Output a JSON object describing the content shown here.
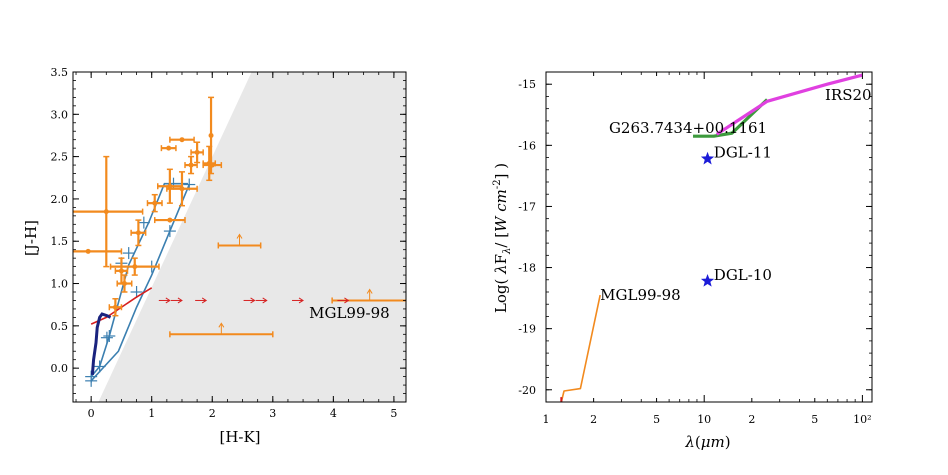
{
  "chart_data": [
    {
      "type": "scatter",
      "title": "",
      "xlabel": "[H-K]",
      "ylabel": "[J-H]",
      "xlim": [
        -0.3,
        5.2
      ],
      "ylim": [
        -0.4,
        3.5
      ],
      "xticks": [
        "0",
        "1",
        "2",
        "3",
        "4",
        "5"
      ],
      "xtick_values": [
        0,
        1,
        2,
        3,
        4,
        5
      ],
      "yticks": [
        "0.0",
        "0.5",
        "1.0",
        "1.5",
        "2.0",
        "2.5",
        "3.0",
        "3.5"
      ],
      "ytick_values": [
        0.0,
        0.5,
        1.0,
        1.5,
        2.0,
        2.5,
        3.0,
        3.5
      ],
      "grid": false,
      "colors": {
        "points": "#f28a1e",
        "reddening_band": "#e8e8e8",
        "reddening_lines": "#3b7fb0",
        "giant_branch": "#1a237e",
        "ctts_locus": "#d62020",
        "lower_limit_arrows": "#d62020"
      },
      "reddening_band": {
        "left_line": [
          [
            0.0,
            -0.1
          ],
          [
            0.14,
            0.02
          ],
          [
            0.3,
            0.38
          ],
          [
            0.62,
            1.22
          ],
          [
            0.95,
            1.72
          ],
          [
            1.21,
            2.18
          ],
          [
            1.6,
            2.18
          ]
        ],
        "right_line": [
          [
            0.0,
            -0.15
          ],
          [
            0.45,
            0.2
          ],
          [
            0.75,
            0.72
          ],
          [
            1.0,
            1.1
          ],
          [
            1.3,
            1.62
          ],
          [
            1.62,
            2.17
          ]
        ],
        "left_crosses": [
          [
            0.0,
            -0.1
          ],
          [
            0.14,
            0.02
          ],
          [
            0.3,
            0.38
          ],
          [
            0.5,
            1.24
          ],
          [
            0.62,
            1.36
          ],
          [
            0.87,
            1.72
          ],
          [
            1.36,
            2.18
          ]
        ],
        "right_crosses": [
          [
            0.0,
            -0.15
          ],
          [
            0.26,
            0.36
          ],
          [
            0.75,
            0.9
          ],
          [
            1.0,
            1.2
          ],
          [
            1.3,
            1.62
          ],
          [
            1.62,
            2.17
          ]
        ]
      },
      "giant_branch": [
        [
          0.02,
          -0.08
        ],
        [
          0.04,
          0.1
        ],
        [
          0.08,
          0.3
        ],
        [
          0.1,
          0.48
        ],
        [
          0.14,
          0.6
        ],
        [
          0.18,
          0.64
        ],
        [
          0.26,
          0.62
        ],
        [
          0.32,
          0.6
        ]
      ],
      "ctts_locus": [
        [
          0.0,
          0.52
        ],
        [
          0.25,
          0.6
        ],
        [
          0.5,
          0.72
        ],
        [
          0.75,
          0.84
        ],
        [
          1.0,
          0.95
        ]
      ],
      "points_with_errors": [
        {
          "x": 0.25,
          "y": 1.85,
          "xerr": 0.6,
          "yerr": 0.65
        },
        {
          "x": -0.05,
          "y": 1.38,
          "xerr": 0.55,
          "yerr": 0.0
        },
        {
          "x": 0.78,
          "y": 1.6,
          "xerr": 0.12,
          "yerr": 0.15
        },
        {
          "x": 0.72,
          "y": 1.2,
          "xerr": 0.4,
          "yerr": 0.1
        },
        {
          "x": 0.5,
          "y": 1.15,
          "xerr": 0.1,
          "yerr": 0.15
        },
        {
          "x": 0.55,
          "y": 1.0,
          "xerr": 0.12,
          "yerr": 0.1
        },
        {
          "x": 0.4,
          "y": 0.72,
          "xerr": 0.1,
          "yerr": 0.1
        },
        {
          "x": 1.05,
          "y": 1.95,
          "xerr": 0.12,
          "yerr": 0.1
        },
        {
          "x": 1.3,
          "y": 1.75,
          "xerr": 0.25,
          "yerr": 0.0
        },
        {
          "x": 1.3,
          "y": 2.15,
          "xerr": 0.2,
          "yerr": 0.2
        },
        {
          "x": 1.5,
          "y": 2.12,
          "xerr": 0.25,
          "yerr": 0.2
        },
        {
          "x": 1.28,
          "y": 2.6,
          "xerr": 0.12,
          "yerr": 0.0
        },
        {
          "x": 1.5,
          "y": 2.7,
          "xerr": 0.2,
          "yerr": 0.0
        },
        {
          "x": 1.75,
          "y": 2.55,
          "xerr": 0.1,
          "yerr": 0.12
        },
        {
          "x": 1.95,
          "y": 2.42,
          "xerr": 0.1,
          "yerr": 0.2
        },
        {
          "x": 1.98,
          "y": 2.75,
          "xerr": 0.0,
          "yerr": 0.45
        },
        {
          "x": 2.0,
          "y": 2.4,
          "xerr": 0.15,
          "yerr": 0.0
        },
        {
          "x": 1.65,
          "y": 2.4,
          "xerr": 0.1,
          "yerr": 0.1
        }
      ],
      "lower_limits": [
        {
          "x": 2.45,
          "y": 1.45,
          "xerr": 0.35
        },
        {
          "x": 2.15,
          "y": 0.4,
          "xerr": 0.85
        },
        {
          "x": 4.6,
          "y": 0.8,
          "xerr": 0.62
        }
      ],
      "arrows_right": [
        {
          "x": 1.2,
          "y": 0.8
        },
        {
          "x": 1.4,
          "y": 0.8
        },
        {
          "x": 1.8,
          "y": 0.8
        },
        {
          "x": 2.6,
          "y": 0.8
        },
        {
          "x": 2.8,
          "y": 0.8
        },
        {
          "x": 3.4,
          "y": 0.8
        },
        {
          "x": 4.15,
          "y": 0.8
        }
      ],
      "annotations": [
        {
          "text": "MGL99-98",
          "x": 3.6,
          "y": 0.65
        }
      ]
    },
    {
      "type": "line",
      "title": "",
      "xlabel": "λ(μm)",
      "ylabel": "Log( λFλ/ [W cm-2] )",
      "xscale": "log",
      "xlim": [
        1,
        115
      ],
      "ylim": [
        -20.2,
        -14.8
      ],
      "xticks": [
        "1",
        "2",
        "5",
        "10",
        "2",
        "5",
        "10²"
      ],
      "xtick_values": [
        1,
        2,
        5,
        10,
        20,
        50,
        100
      ],
      "yticks": [
        "-15",
        "-16",
        "-17",
        "-18",
        "-19",
        "-20"
      ],
      "ytick_values": [
        -15,
        -16,
        -17,
        -18,
        -19,
        -20
      ],
      "grid": false,
      "series": [
        {
          "name": "MGL99-98",
          "color": "#f28a1e",
          "x": [
            1.25,
            1.3,
            1.65,
            2.2
          ],
          "y": [
            -20.2,
            -20.02,
            -19.98,
            -18.45
          ]
        },
        {
          "name": "G263.7434+00.1161",
          "color": "#3c9a3c",
          "x": [
            8.5,
            11.5,
            15.0,
            25.0
          ],
          "y": [
            -15.85,
            -15.85,
            -15.8,
            -15.25
          ]
        },
        {
          "name": "IRS20",
          "color": "#e040e0",
          "x": [
            12.0,
            25.0,
            60.0,
            100.0
          ],
          "y": [
            -15.82,
            -15.28,
            -15.0,
            -14.85
          ]
        }
      ],
      "lower_stub": {
        "color": "#d62020",
        "x": 1.25,
        "y": [
          -20.2,
          -20.12
        ]
      },
      "markers": [
        {
          "name": "DGL-11",
          "x": 10.5,
          "y": -16.22,
          "color": "#1c1cd8"
        },
        {
          "name": "DGL-10",
          "x": 10.5,
          "y": -18.22,
          "color": "#1c1cd8"
        }
      ],
      "annotations": [
        {
          "text": "G263.7434+00.1161",
          "x": 2.5,
          "y": -15.72
        },
        {
          "text": "IRS20",
          "x": 58,
          "y": -15.18
        },
        {
          "text": "DGL-11",
          "x": 11.5,
          "y": -16.12
        },
        {
          "text": "DGL-10",
          "x": 11.5,
          "y": -18.12
        },
        {
          "text": "MGL99-98",
          "x": 2.2,
          "y": -18.45
        }
      ]
    }
  ]
}
